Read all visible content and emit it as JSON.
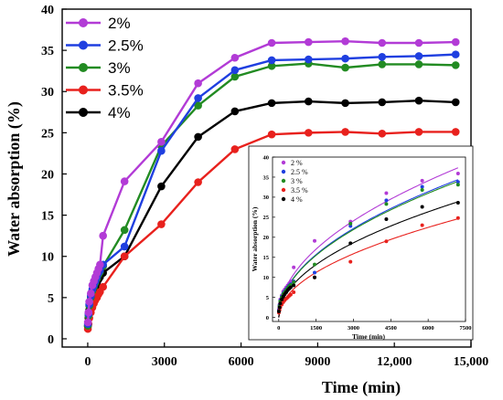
{
  "chart_data": [
    {
      "type": "line",
      "xlabel": "Time (min)",
      "ylabel": "Water absorption (%)",
      "xlim": [
        -1000,
        15000
      ],
      "ylim": [
        -1,
        40
      ],
      "xticks": [
        0,
        3000,
        6000,
        9000,
        12000,
        15000
      ],
      "xtick_labels": [
        "0",
        "3000",
        "6000",
        "9000",
        "12,000",
        "15,000"
      ],
      "yticks": [
        0,
        5,
        10,
        15,
        20,
        25,
        30,
        35,
        40
      ],
      "ytick_labels": [
        "0",
        "5",
        "10",
        "15",
        "20",
        "25",
        "30",
        "35",
        "40"
      ],
      "legend_position": "top-left",
      "series": [
        {
          "name": "2%",
          "color": "#b23bd6",
          "x": [
            5,
            30,
            60,
            120,
            180,
            240,
            300,
            360,
            420,
            480,
            600,
            1440,
            2880,
            4320,
            5760,
            7200,
            8640,
            10080,
            11520,
            12960,
            14400
          ],
          "y": [
            2.0,
            3.2,
            4.5,
            5.5,
            6.5,
            7.0,
            7.5,
            8.0,
            8.5,
            9.0,
            12.5,
            19.1,
            23.9,
            31.0,
            34.1,
            35.9,
            36.0,
            36.1,
            35.9,
            35.9,
            36.0
          ]
        },
        {
          "name": "2.5%",
          "color": "#1f3fe0",
          "x": [
            5,
            30,
            60,
            120,
            180,
            240,
            300,
            360,
            420,
            480,
            600,
            1440,
            2880,
            4320,
            5760,
            7200,
            8640,
            10080,
            11520,
            12960,
            14400
          ],
          "y": [
            1.8,
            3.0,
            4.2,
            5.2,
            6.0,
            6.5,
            7.0,
            7.5,
            8.0,
            8.3,
            9.0,
            11.2,
            22.8,
            29.2,
            32.6,
            33.8,
            33.9,
            34.0,
            34.2,
            34.3,
            34.5
          ]
        },
        {
          "name": "3%",
          "color": "#228b22",
          "x": [
            5,
            30,
            60,
            120,
            180,
            240,
            300,
            360,
            420,
            480,
            600,
            1440,
            2880,
            4320,
            5760,
            7200,
            8640,
            10080,
            11520,
            12960,
            14400
          ],
          "y": [
            1.6,
            2.8,
            4.0,
            5.0,
            5.8,
            6.3,
            6.8,
            7.3,
            7.8,
            8.1,
            8.8,
            13.2,
            23.4,
            28.3,
            31.8,
            33.1,
            33.4,
            32.9,
            33.3,
            33.3,
            33.2
          ]
        },
        {
          "name": "3.5%",
          "color": "#e8211d",
          "x": [
            5,
            30,
            60,
            120,
            180,
            240,
            300,
            360,
            420,
            480,
            600,
            1440,
            2880,
            4320,
            5760,
            7200,
            8640,
            10080,
            11520,
            12960,
            14400
          ],
          "y": [
            1.2,
            1.8,
            2.5,
            3.2,
            3.8,
            4.3,
            4.7,
            5.0,
            5.4,
            5.7,
            6.3,
            10.0,
            13.9,
            19.0,
            23.0,
            24.8,
            25.0,
            25.1,
            24.9,
            25.1,
            25.1
          ]
        },
        {
          "name": "4%",
          "color": "#000000",
          "x": [
            5,
            30,
            60,
            120,
            180,
            240,
            300,
            360,
            420,
            480,
            600,
            1440,
            2880,
            4320,
            5760,
            7200,
            8640,
            10080,
            11520,
            12960,
            14400
          ],
          "y": [
            1.5,
            2.5,
            3.5,
            4.5,
            5.2,
            5.8,
            6.3,
            6.8,
            7.2,
            7.5,
            8.0,
            10.0,
            18.5,
            24.5,
            27.6,
            28.6,
            28.8,
            28.6,
            28.7,
            28.9,
            28.7
          ]
        }
      ]
    },
    {
      "type": "scatter",
      "xlabel": "Time (min)",
      "ylabel": "Water absorption (%)",
      "xlim": [
        -250,
        7500
      ],
      "ylim": [
        -1,
        40
      ],
      "xticks": [
        0,
        1500,
        3000,
        4500,
        6000,
        7500
      ],
      "xtick_labels": [
        "0",
        "1500",
        "3000",
        "4500",
        "6000",
        "7500"
      ],
      "yticks": [
        0,
        5,
        10,
        15,
        20,
        25,
        30,
        35,
        40
      ],
      "ytick_labels": [
        "0",
        "5",
        "10",
        "15",
        "20",
        "25",
        "30",
        "35",
        "40"
      ],
      "legend_position": "top-left",
      "series": [
        {
          "name": "2 %",
          "color": "#b23bd6",
          "x": [
            5,
            30,
            60,
            120,
            180,
            240,
            300,
            360,
            420,
            480,
            600,
            1440,
            2880,
            4320,
            5760,
            7200
          ],
          "y": [
            2.0,
            3.2,
            4.5,
            5.5,
            6.5,
            7.0,
            7.5,
            8.0,
            8.5,
            9.0,
            12.5,
            19.1,
            23.9,
            31.0,
            34.1,
            35.9
          ]
        },
        {
          "name": "2.5 %",
          "color": "#1f3fe0",
          "x": [
            5,
            30,
            60,
            120,
            180,
            240,
            300,
            360,
            420,
            480,
            600,
            1440,
            2880,
            4320,
            5760,
            7200
          ],
          "y": [
            1.8,
            3.0,
            4.2,
            5.2,
            6.0,
            6.5,
            7.0,
            7.5,
            8.0,
            8.3,
            9.0,
            11.2,
            22.8,
            29.2,
            32.6,
            33.8
          ]
        },
        {
          "name": "3 %",
          "color": "#228b22",
          "x": [
            5,
            30,
            60,
            120,
            180,
            240,
            300,
            360,
            420,
            480,
            600,
            1440,
            2880,
            4320,
            5760,
            7200
          ],
          "y": [
            1.6,
            2.8,
            4.0,
            5.0,
            5.8,
            6.3,
            6.8,
            7.3,
            7.8,
            8.1,
            8.8,
            13.2,
            23.4,
            28.3,
            31.8,
            33.1
          ]
        },
        {
          "name": "3.5 %",
          "color": "#e8211d",
          "x": [
            5,
            30,
            60,
            120,
            180,
            240,
            300,
            360,
            420,
            480,
            600,
            1440,
            2880,
            4320,
            5760,
            7200
          ],
          "y": [
            1.2,
            1.8,
            2.5,
            3.2,
            3.8,
            4.3,
            4.7,
            5.0,
            5.4,
            5.7,
            6.3,
            10.0,
            13.9,
            19.0,
            23.0,
            24.8
          ]
        },
        {
          "name": "4 %",
          "color": "#000000",
          "x": [
            5,
            30,
            60,
            120,
            180,
            240,
            300,
            360,
            420,
            480,
            600,
            1440,
            2880,
            4320,
            5760,
            7200
          ],
          "y": [
            1.5,
            2.5,
            3.5,
            4.5,
            5.2,
            5.8,
            6.3,
            6.8,
            7.2,
            7.5,
            8.0,
            10.0,
            18.5,
            24.5,
            27.6,
            28.6
          ]
        }
      ],
      "fit_curves": [
        {
          "series": "2 %",
          "color": "#b23bd6",
          "form": "y = k * x^0.5",
          "k": 0.44
        },
        {
          "series": "2.5 %",
          "color": "#1f3fe0",
          "form": "y = k * x^0.5",
          "k": 0.405
        },
        {
          "series": "3 %",
          "color": "#228b22",
          "form": "y = k * x^0.5",
          "k": 0.4
        },
        {
          "series": "3.5 %",
          "color": "#e8211d",
          "form": "y = k * x^0.5",
          "k": 0.29
        },
        {
          "series": "4 %",
          "color": "#000000",
          "form": "y = k * x^0.5",
          "k": 0.34
        }
      ]
    }
  ]
}
